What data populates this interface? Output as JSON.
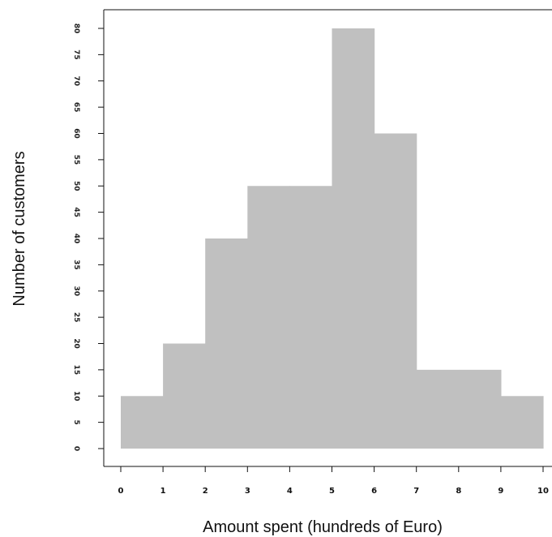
{
  "chart_data": {
    "type": "bar",
    "histogram": true,
    "bin_edges": [
      0,
      1,
      2,
      3,
      4,
      5,
      6,
      7,
      8,
      9,
      10
    ],
    "values": [
      10,
      20,
      40,
      50,
      50,
      80,
      60,
      15,
      15,
      10
    ],
    "xlabel": "Amount spent (hundreds of Euro)",
    "ylabel": "Number of customers",
    "xlim": [
      0,
      10
    ],
    "ylim": [
      0,
      80
    ],
    "x_ticks": [
      "0",
      "1",
      "2",
      "3",
      "4",
      "5",
      "6",
      "7",
      "8",
      "9",
      "10"
    ],
    "y_ticks": [
      "0",
      "5",
      "10",
      "15",
      "20",
      "25",
      "30",
      "35",
      "40",
      "45",
      "50",
      "55",
      "60",
      "65",
      "70",
      "75",
      "80"
    ],
    "bar_color": "#c0c0c0",
    "grid": false
  }
}
